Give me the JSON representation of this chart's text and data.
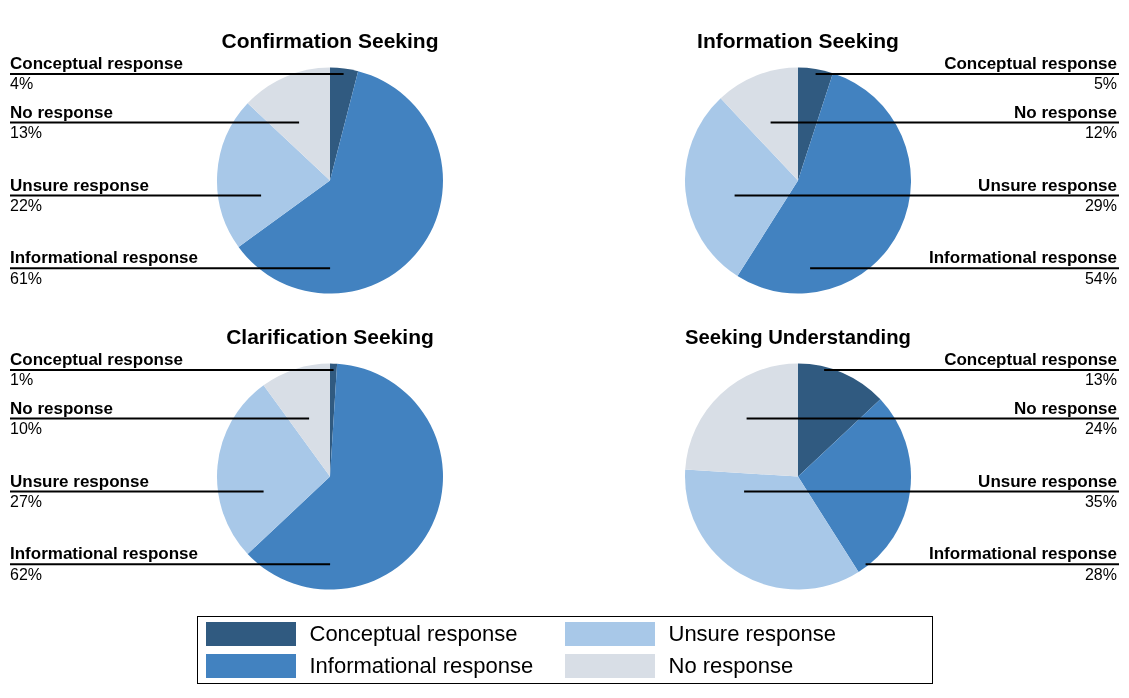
{
  "chart_data": [
    {
      "type": "pie",
      "title": "Confirmation Seeking",
      "categories": [
        "Conceptual response",
        "Informational response",
        "Unsure response",
        "No response"
      ],
      "values": [
        4,
        61,
        22,
        13
      ],
      "value_labels": [
        "4%",
        "61%",
        "22%",
        "13%"
      ],
      "colors": [
        "#305a80",
        "#4282c0",
        "#a8c8e8",
        "#d8dee6"
      ],
      "legend": "bottom"
    },
    {
      "type": "pie",
      "title": "Information Seeking",
      "categories": [
        "Conceptual response",
        "Informational response",
        "Unsure response",
        "No response"
      ],
      "values": [
        5,
        54,
        29,
        12
      ],
      "value_labels": [
        "5%",
        "54%",
        "29%",
        "12%"
      ],
      "colors": [
        "#305a80",
        "#4282c0",
        "#a8c8e8",
        "#d8dee6"
      ]
    },
    {
      "type": "pie",
      "title": "Clarification Seeking",
      "categories": [
        "Conceptual response",
        "Informational response",
        "Unsure response",
        "No response"
      ],
      "values": [
        1,
        62,
        27,
        10
      ],
      "value_labels": [
        "1%",
        "62%",
        "27%",
        "10%"
      ],
      "colors": [
        "#305a80",
        "#4282c0",
        "#a8c8e8",
        "#d8dee6"
      ]
    },
    {
      "type": "pie",
      "title": "Seeking Understanding",
      "categories": [
        "Conceptual response",
        "Informational response",
        "Unsure response",
        "No response"
      ],
      "values": [
        13,
        28,
        35,
        24
      ],
      "value_labels": [
        "13%",
        "28%",
        "35%",
        "24%"
      ],
      "colors": [
        "#305a80",
        "#4282c0",
        "#a8c8e8",
        "#d8dee6"
      ]
    }
  ]
}
